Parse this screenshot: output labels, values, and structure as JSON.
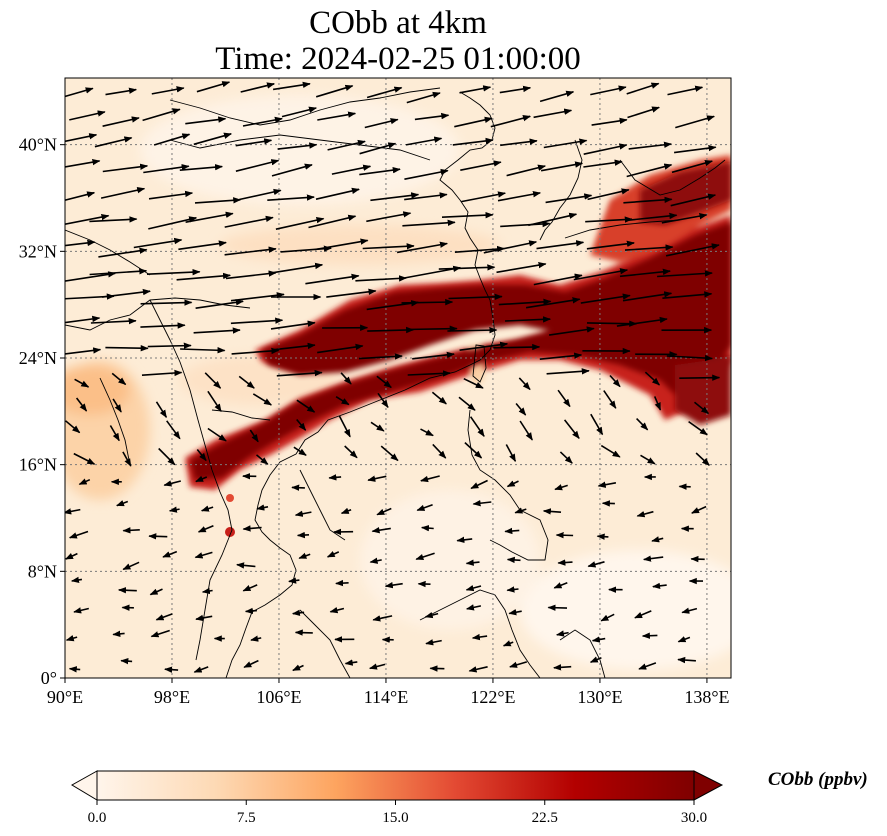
{
  "title": {
    "line1": "CObb at 4km",
    "line2": "Time: 2024-02-25 01:00:00"
  },
  "axes": {
    "lon_ticks": [
      "90°E",
      "98°E",
      "106°E",
      "114°E",
      "122°E",
      "130°E",
      "138°E"
    ],
    "lat_ticks": [
      "0°",
      "8°N",
      "16°N",
      "24°N",
      "32°N",
      "40°N"
    ],
    "lon_values": [
      90,
      98,
      106,
      114,
      122,
      130,
      138
    ],
    "lat_values": [
      0,
      8,
      16,
      24,
      32,
      40
    ],
    "lon_range": [
      90,
      139.8
    ],
    "lat_range": [
      0,
      45
    ]
  },
  "colorbar": {
    "label": "CObb (ppbv)",
    "ticks": [
      "0.0",
      "7.5",
      "15.0",
      "22.5",
      "30.0"
    ],
    "range": [
      0,
      30
    ],
    "colors": [
      "#fff5eb",
      "#fdd0a2",
      "#fd8d3c",
      "#d94801",
      "#a50f15",
      "#7f0000"
    ]
  },
  "colors": {
    "plume_dark": "#7f0000",
    "plume_mid": "#b30000",
    "background_field": "#fdecd6",
    "gridline": "#7a7a7a"
  }
}
